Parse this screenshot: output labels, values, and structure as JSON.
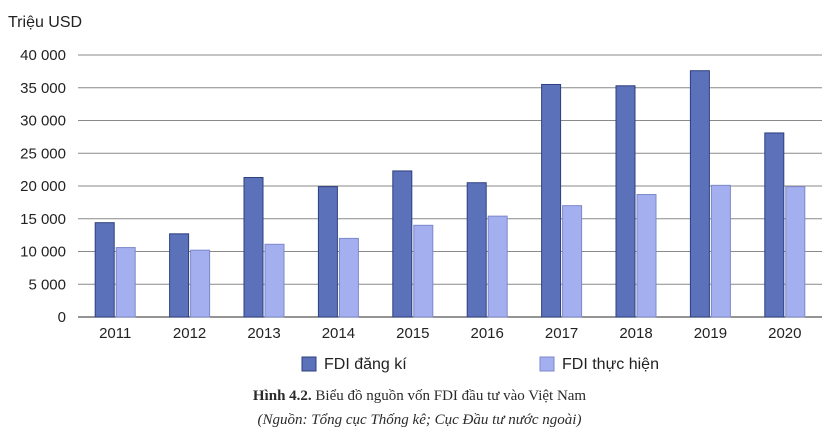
{
  "chart_data": {
    "type": "bar",
    "ylabel": "Triệu USD",
    "ylim": [
      0,
      40000
    ],
    "yticks": [
      0,
      5000,
      10000,
      15000,
      20000,
      25000,
      30000,
      35000,
      40000
    ],
    "ytick_labels": [
      "0",
      "5 000",
      "10 000",
      "15 000",
      "20 000",
      "25 000",
      "30 000",
      "35 000",
      "40 000"
    ],
    "categories": [
      "2011",
      "2012",
      "2013",
      "2014",
      "2015",
      "2016",
      "2017",
      "2018",
      "2019",
      "2020"
    ],
    "series": [
      {
        "name": "FDI đăng kí",
        "color": "#5b71b9",
        "values": [
          14400,
          12700,
          21300,
          19900,
          22300,
          20500,
          35500,
          35300,
          37600,
          28100
        ]
      },
      {
        "name": "FDI thực hiện",
        "color": "#a4aff0",
        "values": [
          10600,
          10200,
          11100,
          12000,
          14000,
          15400,
          17000,
          18700,
          20100,
          19900
        ]
      }
    ],
    "grid": true,
    "legend_position": "bottom"
  },
  "caption": {
    "label": "Hình 4.2.",
    "title": " Biểu đồ nguồn vốn FDI đầu tư vào Việt Nam",
    "source": "(Nguồn: Tổng cục Thống kê; Cục Đầu tư nước ngoài)"
  }
}
